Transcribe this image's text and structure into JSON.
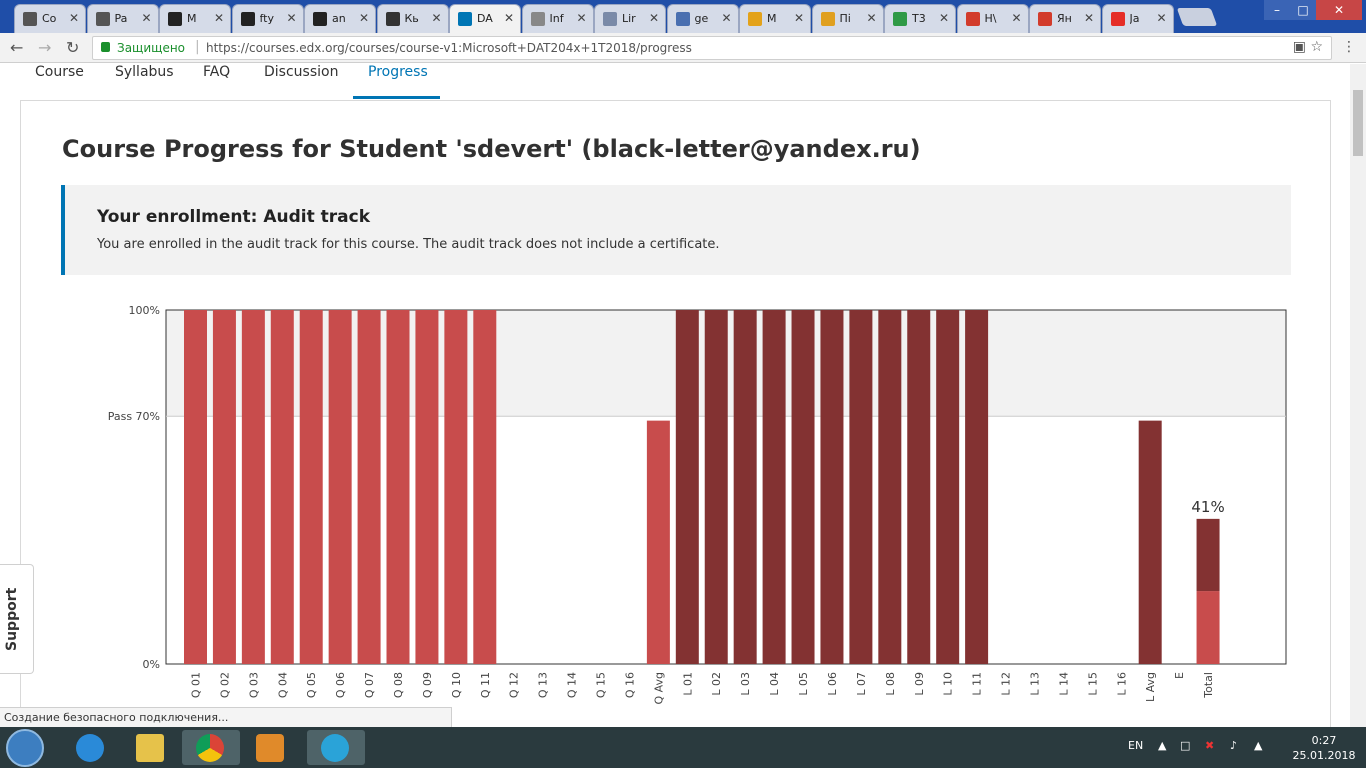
{
  "browser": {
    "tabs": [
      {
        "label": "Co",
        "favicon": "edx-b-icon",
        "color": "#555555"
      },
      {
        "label": "Pa",
        "favicon": "edx-b-icon",
        "color": "#555555"
      },
      {
        "label": "M",
        "favicon": "github-icon",
        "color": "#222222"
      },
      {
        "label": "fty",
        "favicon": "github-icon",
        "color": "#222222"
      },
      {
        "label": "an",
        "favicon": "github-icon",
        "color": "#222222"
      },
      {
        "label": "Кь",
        "favicon": "bookmark-icon",
        "color": "#333333"
      },
      {
        "label": "DA",
        "favicon": "edx-icon",
        "color": "#0075b4",
        "active": true
      },
      {
        "label": "Inf",
        "favicon": "dot-icon",
        "color": "#888888"
      },
      {
        "label": "Lir",
        "favicon": "page-icon",
        "color": "#7a8aa8"
      },
      {
        "label": "ge",
        "favicon": "user-icon",
        "color": "#4a6fb0"
      },
      {
        "label": "M",
        "favicon": "music-icon",
        "color": "#e3a21a"
      },
      {
        "label": "Пі",
        "favicon": "mail-icon",
        "color": "#e0a020"
      },
      {
        "label": "T3",
        "favicon": "drive-icon",
        "color": "#2f9a46"
      },
      {
        "label": "Н\\",
        "favicon": "pdf-icon",
        "color": "#d23b2b"
      },
      {
        "label": "Ян",
        "favicon": "yandex-icon",
        "color": "#d23b2b"
      },
      {
        "label": "Ja",
        "favicon": "youtube-icon",
        "color": "#e52d27"
      }
    ],
    "secure_label": "Защищено",
    "url": "https://courses.edx.org/courses/course-v1:Microsoft+DAT204x+1T2018/progress"
  },
  "nav": {
    "items": [
      "Course",
      "Syllabus",
      "FAQ",
      "Discussion",
      "Progress"
    ],
    "active": "Progress"
  },
  "page": {
    "title": "Course Progress for Student 'sdevert' (black-letter@yandex.ru)",
    "enrollment_title": "Your enrollment: Audit track",
    "enrollment_text": "You are enrolled in the audit track for this course. The audit track does not include a certificate."
  },
  "chart_data": {
    "type": "bar",
    "y_tick_labels": [
      "100%",
      "Pass 70%",
      "0%"
    ],
    "ylim": [
      0,
      100
    ],
    "pass_threshold": 70,
    "categories": [
      "Q 01",
      "Q 02",
      "Q 03",
      "Q 04",
      "Q 05",
      "Q 06",
      "Q 07",
      "Q 08",
      "Q 09",
      "Q 10",
      "Q 11",
      "Q 12",
      "Q 13",
      "Q 14",
      "Q 15",
      "Q 16",
      "Q Avg",
      "L 01",
      "L 02",
      "L 03",
      "L 04",
      "L 05",
      "L 06",
      "L 07",
      "L 08",
      "L 09",
      "L 10",
      "L 11",
      "L 12",
      "L 13",
      "L 14",
      "L 15",
      "L 16",
      "L Avg",
      "E",
      "Total"
    ],
    "values": [
      100,
      100,
      100,
      100,
      100,
      100,
      100,
      100,
      100,
      100,
      100,
      0,
      0,
      0,
      0,
      0,
      68.75,
      100,
      100,
      100,
      100,
      100,
      100,
      100,
      100,
      100,
      100,
      100,
      0,
      0,
      0,
      0,
      0,
      68.75,
      0,
      41
    ],
    "total_breakdown": {
      "quiz_part": 20.6,
      "lab_part": 20.4
    },
    "total_label": "41%",
    "colors": {
      "quiz": "#c84c4c",
      "lab": "#833232",
      "pass_band": "#f2f2f2"
    }
  },
  "support_label": "Support",
  "status_text": "Создание безопасного подключения...",
  "taskbar": {
    "lang": "EN",
    "time": "0:27",
    "date": "25.01.2018"
  }
}
